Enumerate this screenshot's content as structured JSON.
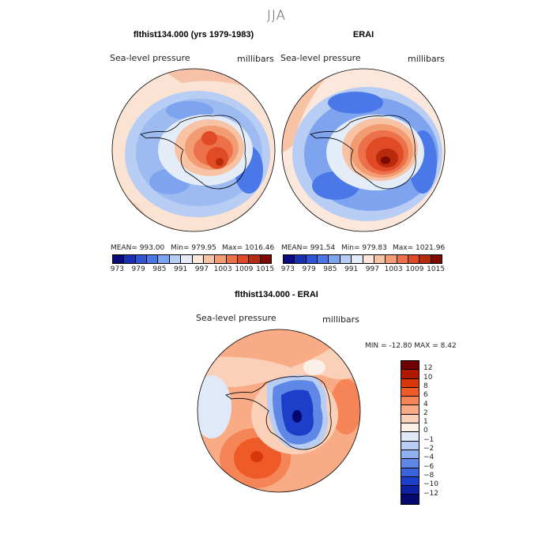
{
  "figure": {
    "season": "JJA",
    "variable_label": "Sea-level pressure",
    "units_label": "millibars"
  },
  "panels": {
    "model": {
      "title": "flthist134.000 (yrs 1979-1983)",
      "mean_text": "MEAN= 993.00",
      "min_text": "Min= 979.95",
      "max_text": "Max= 1016.46"
    },
    "obs": {
      "title": "ERAI",
      "mean_text": "MEAN= 991.54",
      "min_text": "Min= 979.83",
      "max_text": "Max= 1021.96"
    },
    "diff": {
      "title": "flthist134.000 - ERAI",
      "minmax_text": "MIN = -12.80 MAX =   8.42"
    }
  },
  "chart_data": [
    {
      "type": "heatmap",
      "projection": "south polar stereographic",
      "title": "flthist134.000 (yrs 1979-1983)",
      "variable": "Sea-level pressure",
      "units": "millibars",
      "mean": 993.0,
      "min": 979.95,
      "max": 1016.46,
      "colorbar_ticks": [
        "973",
        "979",
        "985",
        "991",
        "997",
        "1003",
        "1009",
        "1015"
      ],
      "colorbar_levels": 14
    },
    {
      "type": "heatmap",
      "projection": "south polar stereographic",
      "title": "ERAI",
      "variable": "Sea-level pressure",
      "units": "millibars",
      "mean": 991.54,
      "min": 979.83,
      "max": 1021.96,
      "colorbar_ticks": [
        "973",
        "979",
        "985",
        "991",
        "997",
        "1003",
        "1009",
        "1015"
      ],
      "colorbar_levels": 14
    },
    {
      "type": "heatmap",
      "projection": "south polar stereographic",
      "title": "flthist134.000 - ERAI",
      "variable": "Sea-level pressure",
      "units": "millibars",
      "min": -12.8,
      "max": 8.42,
      "colorbar_ticks": [
        "12",
        "10",
        "8",
        "6",
        "4",
        "2",
        "1",
        "0",
        "−1",
        "−2",
        "−4",
        "−6",
        "−8",
        "−10",
        "−12"
      ]
    }
  ],
  "colorbars": {
    "abs_colors": [
      "#0a0a7a",
      "#1a2fb3",
      "#2f55d6",
      "#4a78e8",
      "#7ea3ef",
      "#b7cdf3",
      "#e3ecf7",
      "#fbe7db",
      "#f8c2a4",
      "#f29c74",
      "#ec714a",
      "#e04a24",
      "#b82a0c",
      "#7d0a02"
    ],
    "diff_colors": [
      "#6e0000",
      "#b01800",
      "#d8370c",
      "#ee5a28",
      "#f58456",
      "#f8ab84",
      "#fad0b8",
      "#fbf0e8",
      "#dfe9f8",
      "#b8cdf3",
      "#8fb0ee",
      "#5f88e6",
      "#3a63dc",
      "#1c3fca",
      "#0c22a3",
      "#05086e"
    ]
  }
}
